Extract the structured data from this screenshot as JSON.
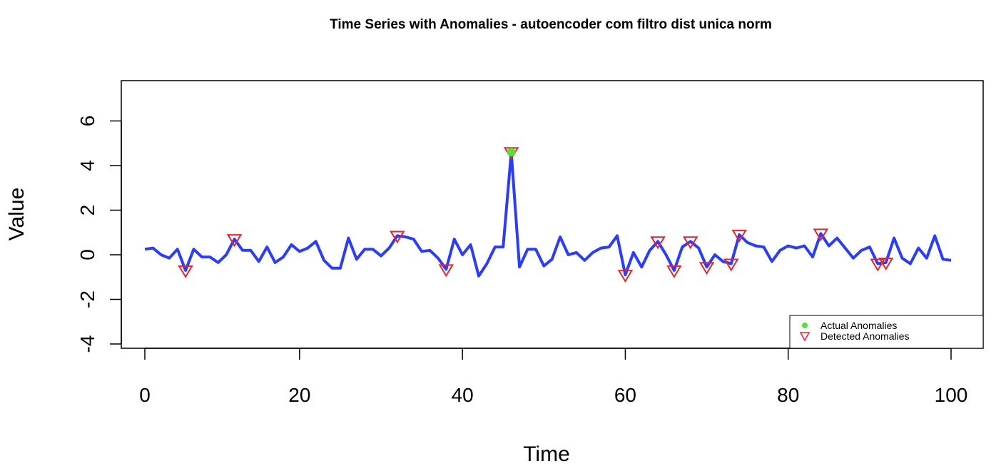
{
  "chart_data": {
    "type": "line",
    "title": "Time Series with Anomalies - autoencoder com filtro dist unica norm",
    "xlabel": "Time",
    "ylabel": "Value",
    "xlim": [
      1,
      100
    ],
    "ylim": [
      -4,
      7
    ],
    "x_ticks": [
      0,
      20,
      40,
      60,
      80,
      100
    ],
    "y_ticks": [
      -4,
      -2,
      0,
      2,
      4,
      6
    ],
    "grid": false,
    "legend_position": "bottom-right",
    "series": [
      {
        "type": "line",
        "color": "#2a3cff",
        "x": [
          1,
          2,
          3,
          4,
          5,
          6,
          7,
          8,
          9,
          10,
          11,
          12,
          13,
          14,
          15,
          16,
          17,
          18,
          19,
          20,
          21,
          22,
          23,
          24,
          25,
          26,
          27,
          28,
          29,
          30,
          31,
          32,
          33,
          34,
          35,
          36,
          37,
          38,
          39,
          40,
          41,
          42,
          43,
          44,
          45,
          46,
          47,
          48,
          49,
          50,
          51,
          52,
          53,
          54,
          55,
          56,
          57,
          58,
          59,
          60,
          61,
          62,
          63,
          64,
          65,
          66,
          67,
          68,
          69,
          70,
          71,
          72,
          73,
          74,
          75,
          76,
          77,
          78,
          79,
          80,
          81,
          82,
          83,
          84,
          85,
          86,
          87,
          88,
          89,
          90,
          91,
          92,
          93,
          94,
          95,
          96,
          97,
          98,
          99,
          100
        ],
        "y": [
          0.25,
          0.3,
          0.0,
          -0.15,
          0.25,
          -0.7,
          0.25,
          -0.1,
          -0.1,
          -0.35,
          0.0,
          0.7,
          0.2,
          0.2,
          -0.3,
          0.35,
          -0.35,
          -0.1,
          0.45,
          0.15,
          0.3,
          0.6,
          -0.25,
          -0.6,
          -0.6,
          0.75,
          -0.2,
          0.25,
          0.25,
          -0.05,
          0.3,
          0.85,
          0.8,
          0.7,
          0.15,
          0.2,
          -0.15,
          -0.65,
          0.7,
          0.0,
          0.45,
          -0.95,
          -0.4,
          0.35,
          0.35,
          4.6,
          -0.55,
          0.25,
          0.25,
          -0.5,
          -0.2,
          0.8,
          0.0,
          0.1,
          -0.25,
          0.1,
          0.3,
          0.35,
          0.85,
          -0.9,
          0.1,
          -0.55,
          0.2,
          0.6,
          0.0,
          -0.7,
          0.35,
          0.6,
          0.3,
          -0.55,
          0.0,
          -0.3,
          -0.4,
          0.9,
          0.55,
          0.4,
          0.35,
          -0.3,
          0.2,
          0.4,
          0.3,
          0.4,
          -0.1,
          0.95,
          0.4,
          0.75,
          0.3,
          -0.15,
          0.2,
          0.35,
          -0.4,
          -0.35,
          0.75,
          -0.15,
          -0.4,
          0.3,
          -0.15,
          0.85,
          -0.2,
          -0.25
        ]
      }
    ],
    "actual_anomalies": {
      "name": "Actual Anomalies",
      "color": "#55e038",
      "x": [
        46
      ],
      "y": [
        4.6
      ]
    },
    "detected_anomalies": {
      "name": "Detected Anomalies",
      "color": "#e8232a",
      "x": [
        6,
        12,
        32,
        38,
        46,
        60,
        64,
        66,
        68,
        70,
        73,
        74,
        84,
        91,
        92
      ],
      "y": [
        -0.7,
        0.7,
        0.85,
        -0.65,
        4.6,
        -0.9,
        0.6,
        -0.7,
        0.6,
        -0.55,
        -0.4,
        0.9,
        0.95,
        -0.4,
        -0.35
      ]
    }
  }
}
